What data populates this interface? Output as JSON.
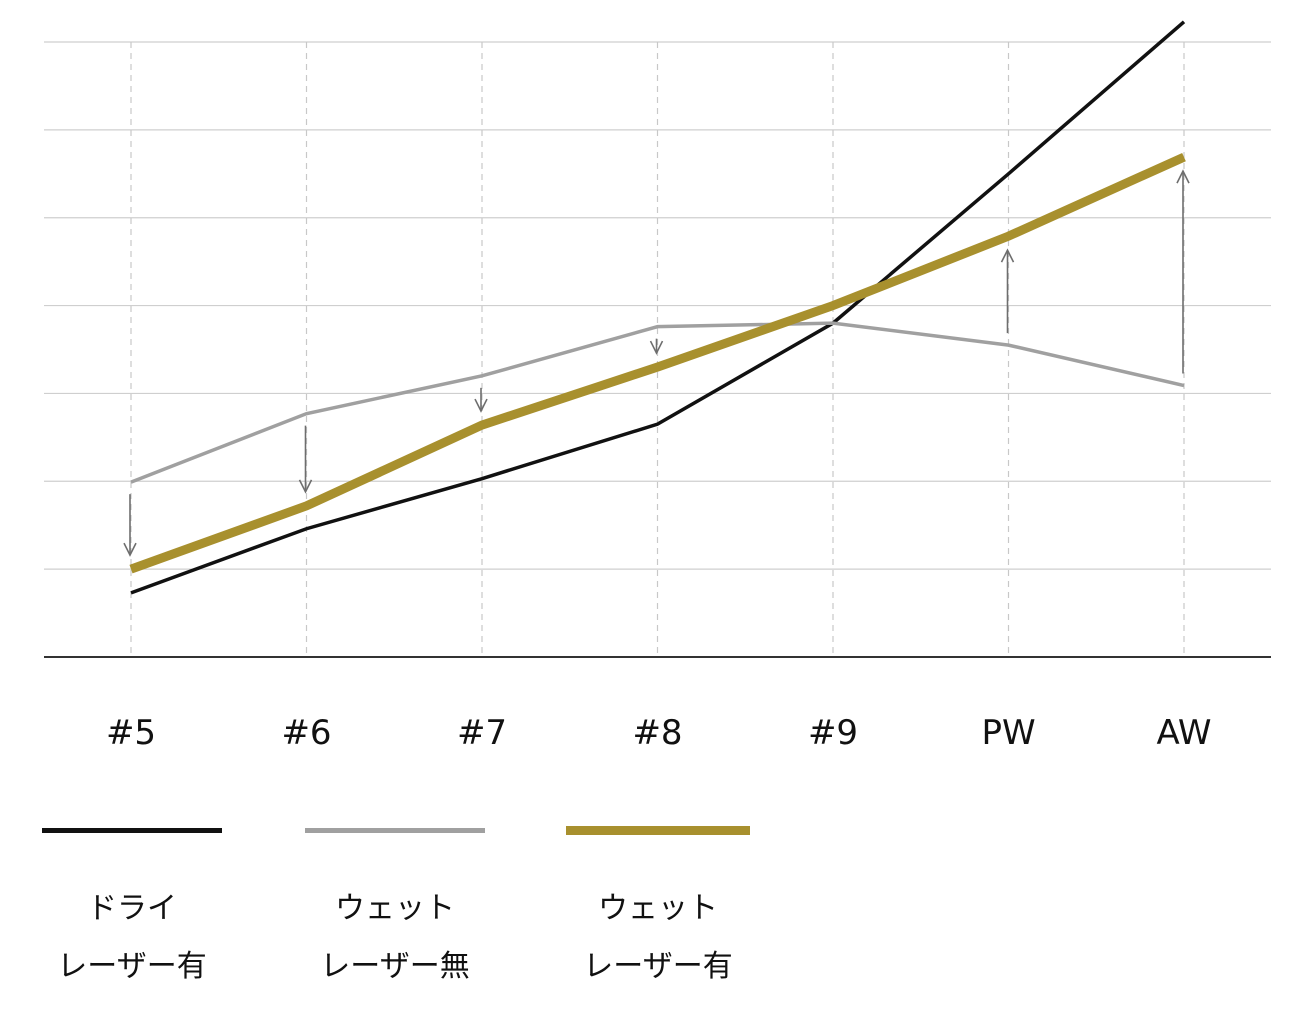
{
  "chart_data": {
    "type": "line",
    "categories": [
      "#5",
      "#6",
      "#7",
      "#8",
      "#9",
      "PW",
      "AW"
    ],
    "ylim": [
      0,
      7
    ],
    "grid": true,
    "legend_placement": "bottom",
    "series": [
      {
        "name": "ドライ レーザー有",
        "line1": "ドライ",
        "line2": "レーザー有",
        "color": "#111111",
        "values": [
          0.73,
          1.46,
          2.03,
          2.65,
          3.8,
          5.5,
          7.23
        ]
      },
      {
        "name": "ウェット レーザー無",
        "line1": "ウェット",
        "line2": "レーザー無",
        "color": "#a0a0a0",
        "values": [
          1.99,
          2.77,
          3.2,
          3.76,
          3.8,
          3.55,
          3.09
        ]
      },
      {
        "name": "ウェット レーザー有",
        "line1": "ウェット",
        "line2": "レーザー有",
        "color": "#a8902e",
        "values": [
          1.0,
          1.72,
          2.64,
          3.3,
          4.0,
          4.79,
          5.69
        ]
      }
    ],
    "arrows": [
      {
        "category": "#5",
        "direction": "down"
      },
      {
        "category": "#6",
        "direction": "down"
      },
      {
        "category": "#7",
        "direction": "down"
      },
      {
        "category": "#8",
        "direction": "down"
      },
      {
        "category": "PW",
        "direction": "up"
      },
      {
        "category": "AW",
        "direction": "up"
      }
    ]
  }
}
